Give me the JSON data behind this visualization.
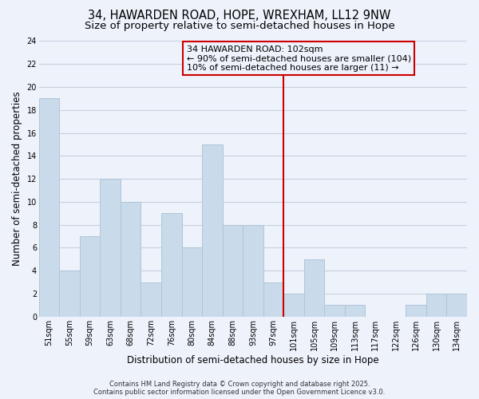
{
  "title": "34, HAWARDEN ROAD, HOPE, WREXHAM, LL12 9NW",
  "subtitle": "Size of property relative to semi-detached houses in Hope",
  "xlabel": "Distribution of semi-detached houses by size in Hope",
  "ylabel": "Number of semi-detached properties",
  "bar_labels": [
    "51sqm",
    "55sqm",
    "59sqm",
    "63sqm",
    "68sqm",
    "72sqm",
    "76sqm",
    "80sqm",
    "84sqm",
    "88sqm",
    "93sqm",
    "97sqm",
    "101sqm",
    "105sqm",
    "109sqm",
    "113sqm",
    "117sqm",
    "122sqm",
    "126sqm",
    "130sqm",
    "134sqm"
  ],
  "bar_values": [
    19,
    4,
    7,
    12,
    10,
    3,
    9,
    6,
    15,
    8,
    8,
    3,
    2,
    5,
    1,
    1,
    0,
    0,
    1,
    2,
    2
  ],
  "bar_color": "#c9daea",
  "bar_edgecolor": "#afc6d8",
  "grid_color": "#c8d0df",
  "background_color": "#eef2fb",
  "vline_color": "#cc0000",
  "annotation_text": "34 HAWARDEN ROAD: 102sqm\n← 90% of semi-detached houses are smaller (104)\n10% of semi-detached houses are larger (11) →",
  "annotation_box_edgecolor": "#cc0000",
  "ylim": [
    0,
    24
  ],
  "yticks": [
    0,
    2,
    4,
    6,
    8,
    10,
    12,
    14,
    16,
    18,
    20,
    22,
    24
  ],
  "footer_text": "Contains HM Land Registry data © Crown copyright and database right 2025.\nContains public sector information licensed under the Open Government Licence v3.0.",
  "title_fontsize": 10.5,
  "subtitle_fontsize": 9.5,
  "axis_label_fontsize": 8.5,
  "tick_fontsize": 7,
  "annotation_fontsize": 8,
  "footer_fontsize": 6
}
